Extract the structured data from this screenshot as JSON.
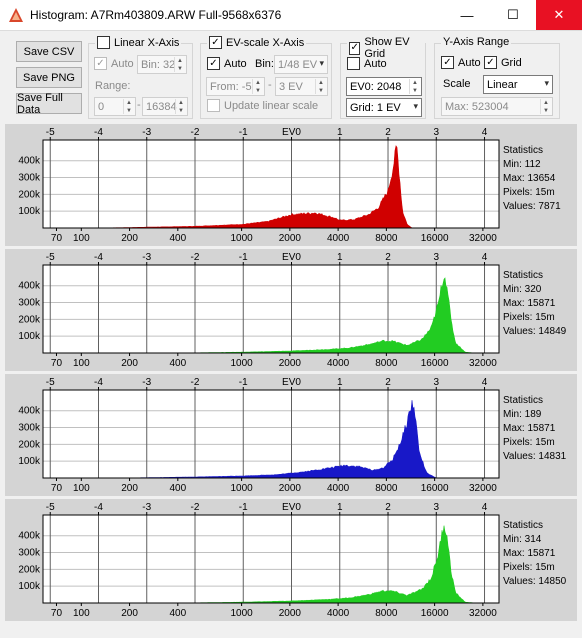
{
  "window": {
    "title": "Histogram: A7Rm403809.ARW Full-9568x6376",
    "minimize": "—",
    "maximize": "☐",
    "close": "✕"
  },
  "buttons": {
    "save_csv": "Save CSV",
    "save_png": "Save PNG",
    "save_full": "Save Full Data"
  },
  "linear": {
    "title": "Linear X-Axis",
    "checked": false,
    "auto_label": "Auto",
    "bin_label": "Bin: 32",
    "range_label": "Range:",
    "range_from": "0",
    "range_to": "16384"
  },
  "ev": {
    "title": "EV-scale X-Axis",
    "checked": true,
    "auto_label": "Auto",
    "bin_label": "Bin:",
    "bin_value": "1/48 EV",
    "from_label": "From: -5",
    "to_value": "3 EV",
    "update_label": "Update linear scale"
  },
  "evgrid": {
    "title": "Show EV Grid",
    "checked": true,
    "auto_label": "Auto",
    "ev0_label": "EV0: 2048",
    "grid_value": "Grid: 1 EV"
  },
  "yaxis": {
    "title": "Y-Axis Range",
    "auto_label": "Auto",
    "grid_label": "Grid",
    "scale_label": "Scale",
    "scale_value": "Linear",
    "max_label": "Max: 523004"
  },
  "axes": {
    "ev_ticks": [
      "-5",
      "-4",
      "-3",
      "-2",
      "-1",
      "EV0",
      "1",
      "2",
      "3",
      "4"
    ],
    "ev_values": [
      -5,
      -4,
      -3,
      -2,
      -1,
      0,
      1,
      2,
      3,
      4
    ],
    "linear_ticks": [
      "70",
      "100",
      "200",
      "400",
      "1000",
      "2000",
      "4000",
      "8000",
      "16000",
      "32000"
    ],
    "linear_values": [
      70,
      100,
      200,
      400,
      1000,
      2000,
      4000,
      8000,
      16000,
      32000
    ],
    "y_ticks": [
      "400k",
      "300k",
      "200k",
      "100k"
    ],
    "y_values": [
      400000,
      300000,
      200000,
      100000
    ],
    "ev0": 2048,
    "ev_range": [
      -5.15,
      4.3
    ],
    "y_max": 523004
  },
  "panels": [
    {
      "color": "#d00000",
      "stats_title": "Statistics",
      "min": "Min: 112",
      "max": "Max: 13654",
      "pixels": "Pixels: 15m",
      "values": "Values: 7871",
      "curve": [
        [
          -4.2,
          0
        ],
        [
          -3.5,
          2000
        ],
        [
          -3,
          5000
        ],
        [
          -2,
          10000
        ],
        [
          -1.5,
          16000
        ],
        [
          -1,
          22000
        ],
        [
          -0.5,
          38000
        ],
        [
          0,
          80000
        ],
        [
          0.5,
          90000
        ],
        [
          0.9,
          60000
        ],
        [
          1,
          45000
        ],
        [
          1.3,
          50000
        ],
        [
          1.6,
          80000
        ],
        [
          1.8,
          120000
        ],
        [
          2.0,
          220000
        ],
        [
          2.1,
          350000
        ],
        [
          2.18,
          490000
        ],
        [
          2.24,
          300000
        ],
        [
          2.3,
          100000
        ],
        [
          2.4,
          20000
        ],
        [
          2.5,
          0
        ]
      ]
    },
    {
      "color": "#22cc22",
      "stats_title": "Statistics",
      "min": "Min: 320",
      "max": "Max: 15871",
      "pixels": "Pixels: 15m",
      "values": "Values: 14849",
      "curve": [
        [
          -2.5,
          0
        ],
        [
          -2,
          1000
        ],
        [
          -1,
          5000
        ],
        [
          0,
          12000
        ],
        [
          0.8,
          22000
        ],
        [
          1.2,
          30000
        ],
        [
          1.6,
          50000
        ],
        [
          1.9,
          72000
        ],
        [
          2.1,
          70000
        ],
        [
          2.4,
          45000
        ],
        [
          2.7,
          80000
        ],
        [
          2.9,
          150000
        ],
        [
          3.05,
          300000
        ],
        [
          3.15,
          460000
        ],
        [
          3.22,
          420000
        ],
        [
          3.3,
          200000
        ],
        [
          3.4,
          60000
        ],
        [
          3.6,
          5000
        ],
        [
          3.8,
          0
        ]
      ]
    },
    {
      "color": "#1818c8",
      "stats_title": "Statistics",
      "min": "Min: 189",
      "max": "Max: 15871",
      "pixels": "Pixels: 15m",
      "values": "Values: 14831",
      "curve": [
        [
          -3.5,
          0
        ],
        [
          -3,
          2000
        ],
        [
          -2,
          6000
        ],
        [
          -1,
          12000
        ],
        [
          -0.3,
          20000
        ],
        [
          0.3,
          38000
        ],
        [
          0.8,
          60000
        ],
        [
          1.1,
          75000
        ],
        [
          1.4,
          68000
        ],
        [
          1.7,
          45000
        ],
        [
          1.9,
          60000
        ],
        [
          2.1,
          110000
        ],
        [
          2.3,
          240000
        ],
        [
          2.45,
          390000
        ],
        [
          2.5,
          450000
        ],
        [
          2.56,
          380000
        ],
        [
          2.65,
          150000
        ],
        [
          2.8,
          30000
        ],
        [
          3,
          0
        ]
      ]
    },
    {
      "color": "#22cc22",
      "stats_title": "Statistics",
      "min": "Min: 314",
      "max": "Max: 15871",
      "pixels": "Pixels: 15m",
      "values": "Values: 14850",
      "curve": [
        [
          -2.5,
          0
        ],
        [
          -2,
          1000
        ],
        [
          -1,
          5000
        ],
        [
          0,
          12000
        ],
        [
          0.8,
          22000
        ],
        [
          1.2,
          30000
        ],
        [
          1.6,
          50000
        ],
        [
          1.9,
          72000
        ],
        [
          2.1,
          70000
        ],
        [
          2.4,
          45000
        ],
        [
          2.7,
          80000
        ],
        [
          2.9,
          150000
        ],
        [
          3.05,
          300000
        ],
        [
          3.15,
          460000
        ],
        [
          3.22,
          420000
        ],
        [
          3.3,
          200000
        ],
        [
          3.4,
          60000
        ],
        [
          3.6,
          5000
        ],
        [
          3.8,
          0
        ]
      ]
    }
  ]
}
